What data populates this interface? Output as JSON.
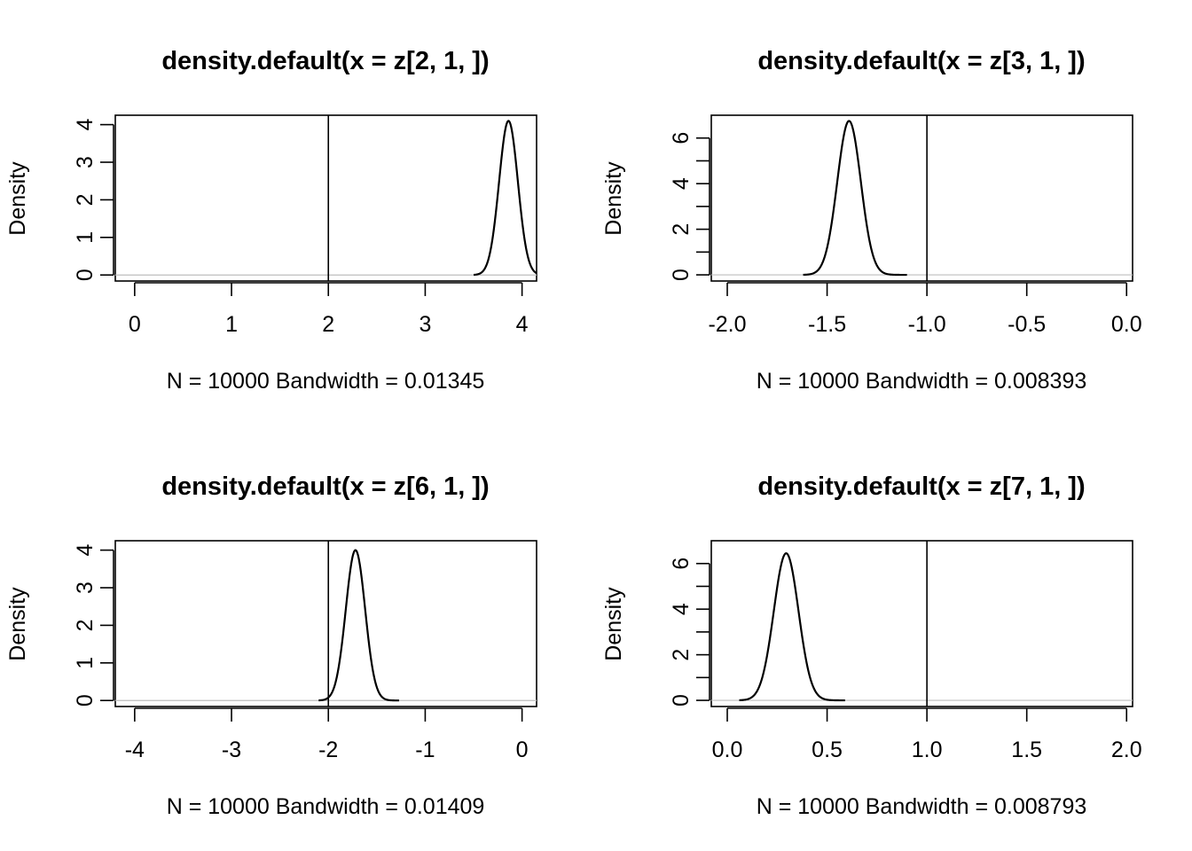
{
  "chart_data": [
    {
      "type": "line",
      "title": "density.default(x = z[2, 1, ])",
      "xlabel": "N = 10000   Bandwidth = 0.01345",
      "ylabel": "Density",
      "xlim": [
        -0.2,
        4.15
      ],
      "ylim": [
        -0.16,
        4.25
      ],
      "xticks": [
        0,
        1,
        2,
        3,
        4
      ],
      "xtick_labels": [
        "0",
        "1",
        "2",
        "3",
        "4"
      ],
      "yticks": [
        0,
        1,
        2,
        3,
        4
      ],
      "ytick_labels": [
        "0",
        "1",
        "2",
        "3",
        "4"
      ],
      "vline": 2,
      "density": {
        "mean": 3.86,
        "sd": 0.097,
        "peak": 4.1,
        "range": [
          3.5,
          4.15
        ]
      }
    },
    {
      "type": "line",
      "title": "density.default(x = z[3, 1, ])",
      "xlabel": "N = 10000   Bandwidth = 0.008393",
      "ylabel": "Density",
      "xlim": [
        -2.08,
        0.03
      ],
      "ylim": [
        -0.27,
        7.0
      ],
      "xticks": [
        -2.0,
        -1.5,
        -1.0,
        -0.5,
        0.0
      ],
      "xtick_labels": [
        "-2.0",
        "-1.5",
        "-1.0",
        "-0.5",
        "0.0"
      ],
      "yticks": [
        0,
        1,
        2,
        3,
        4,
        5,
        6
      ],
      "ytick_labels": [
        "0",
        "",
        "2",
        "",
        "4",
        "",
        "6"
      ],
      "vline": -1.0,
      "density": {
        "mean": -1.39,
        "sd": 0.059,
        "peak": 6.75,
        "range": [
          -1.62,
          -1.1
        ]
      }
    },
    {
      "type": "line",
      "title": "density.default(x = z[6, 1, ])",
      "xlabel": "N = 10000   Bandwidth = 0.01409",
      "ylabel": "Density",
      "xlim": [
        -4.2,
        0.15
      ],
      "ylim": [
        -0.16,
        4.25
      ],
      "xticks": [
        -4,
        -3,
        -2,
        -1,
        0
      ],
      "xtick_labels": [
        "-4",
        "-3",
        "-2",
        "-1",
        "0"
      ],
      "yticks": [
        0,
        1,
        2,
        3,
        4
      ],
      "ytick_labels": [
        "0",
        "1",
        "2",
        "3",
        "4"
      ],
      "vline": -2,
      "density": {
        "mean": -1.72,
        "sd": 0.1,
        "peak": 4.0,
        "range": [
          -2.1,
          -1.27
        ]
      }
    },
    {
      "type": "line",
      "title": "density.default(x = z[7, 1, ])",
      "xlabel": "N = 10000   Bandwidth = 0.008793",
      "ylabel": "Density",
      "xlim": [
        -0.08,
        2.03
      ],
      "ylim": [
        -0.27,
        7.0
      ],
      "xticks": [
        0.0,
        0.5,
        1.0,
        1.5,
        2.0
      ],
      "xtick_labels": [
        "0.0",
        "0.5",
        "1.0",
        "1.5",
        "2.0"
      ],
      "yticks": [
        0,
        1,
        2,
        3,
        4,
        5,
        6
      ],
      "ytick_labels": [
        "0",
        "",
        "2",
        "",
        "4",
        "",
        "6"
      ],
      "vline": 1.0,
      "density": {
        "mean": 0.295,
        "sd": 0.062,
        "peak": 6.45,
        "range": [
          0.06,
          0.59
        ]
      }
    }
  ]
}
